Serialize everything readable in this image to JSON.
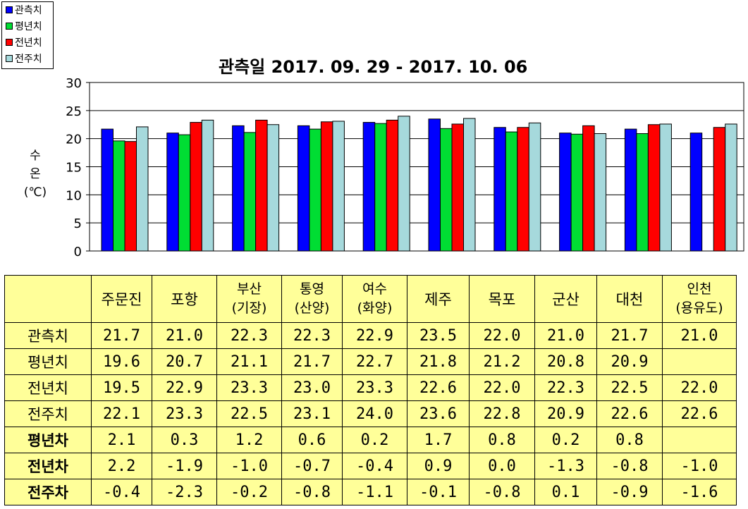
{
  "chart_data": {
    "type": "bar",
    "title": "관측일 2017. 09. 29 - 2017. 10. 06",
    "ylabel": [
      "수",
      "온",
      "(℃)"
    ],
    "ylim": [
      0,
      30
    ],
    "yticks": [
      0,
      5,
      10,
      15,
      20,
      25,
      30
    ],
    "grid": true,
    "legend_position": "top-left",
    "categories": [
      "주문진",
      "포항",
      "부산\n(기장)",
      "통영\n(산양)",
      "여수\n(화양)",
      "제주",
      "목포",
      "군산",
      "대천",
      "인천\n(용유도)"
    ],
    "series": [
      {
        "name": "관측치",
        "color": "#0000ff",
        "values": [
          21.7,
          21.0,
          22.3,
          22.3,
          22.9,
          23.5,
          22.0,
          21.0,
          21.7,
          21.0
        ]
      },
      {
        "name": "평년치",
        "color": "#00dd33",
        "values": [
          19.6,
          20.7,
          21.1,
          21.7,
          22.7,
          21.8,
          21.2,
          20.8,
          20.9,
          null
        ]
      },
      {
        "name": "전년치",
        "color": "#ff0000",
        "values": [
          19.5,
          22.9,
          23.3,
          23.0,
          23.3,
          22.6,
          22.0,
          22.3,
          22.5,
          22.0
        ]
      },
      {
        "name": "전주치",
        "color": "#a6d9dc",
        "values": [
          22.1,
          23.3,
          22.5,
          23.1,
          24.0,
          23.6,
          22.8,
          20.9,
          22.6,
          22.6
        ]
      }
    ]
  },
  "table": {
    "rows": [
      {
        "label": "관측치",
        "bold": false,
        "values": [
          "21.7",
          "21.0",
          "22.3",
          "22.3",
          "22.9",
          "23.5",
          "22.0",
          "21.0",
          "21.7",
          "21.0"
        ]
      },
      {
        "label": "평년치",
        "bold": false,
        "values": [
          "19.6",
          "20.7",
          "21.1",
          "21.7",
          "22.7",
          "21.8",
          "21.2",
          "20.8",
          "20.9",
          ""
        ]
      },
      {
        "label": "전년치",
        "bold": false,
        "values": [
          "19.5",
          "22.9",
          "23.3",
          "23.0",
          "23.3",
          "22.6",
          "22.0",
          "22.3",
          "22.5",
          "22.0"
        ]
      },
      {
        "label": "전주치",
        "bold": false,
        "values": [
          "22.1",
          "23.3",
          "22.5",
          "23.1",
          "24.0",
          "23.6",
          "22.8",
          "20.9",
          "22.6",
          "22.6"
        ]
      },
      {
        "label": "평년차",
        "bold": true,
        "values": [
          "2.1",
          "0.3",
          "1.2",
          "0.6",
          "0.2",
          "1.7",
          "0.8",
          "0.2",
          "0.8",
          ""
        ]
      },
      {
        "label": "전년차",
        "bold": true,
        "values": [
          "2.2",
          "-1.9",
          "-1.0",
          "-0.7",
          "-0.4",
          "0.9",
          "0.0",
          "-1.3",
          "-0.8",
          "-1.0"
        ]
      },
      {
        "label": "전주차",
        "bold": true,
        "values": [
          "-0.4",
          "-2.3",
          "-0.2",
          "-0.8",
          "-1.1",
          "-0.1",
          "-0.8",
          "0.1",
          "-0.9",
          "-1.6"
        ]
      }
    ]
  }
}
